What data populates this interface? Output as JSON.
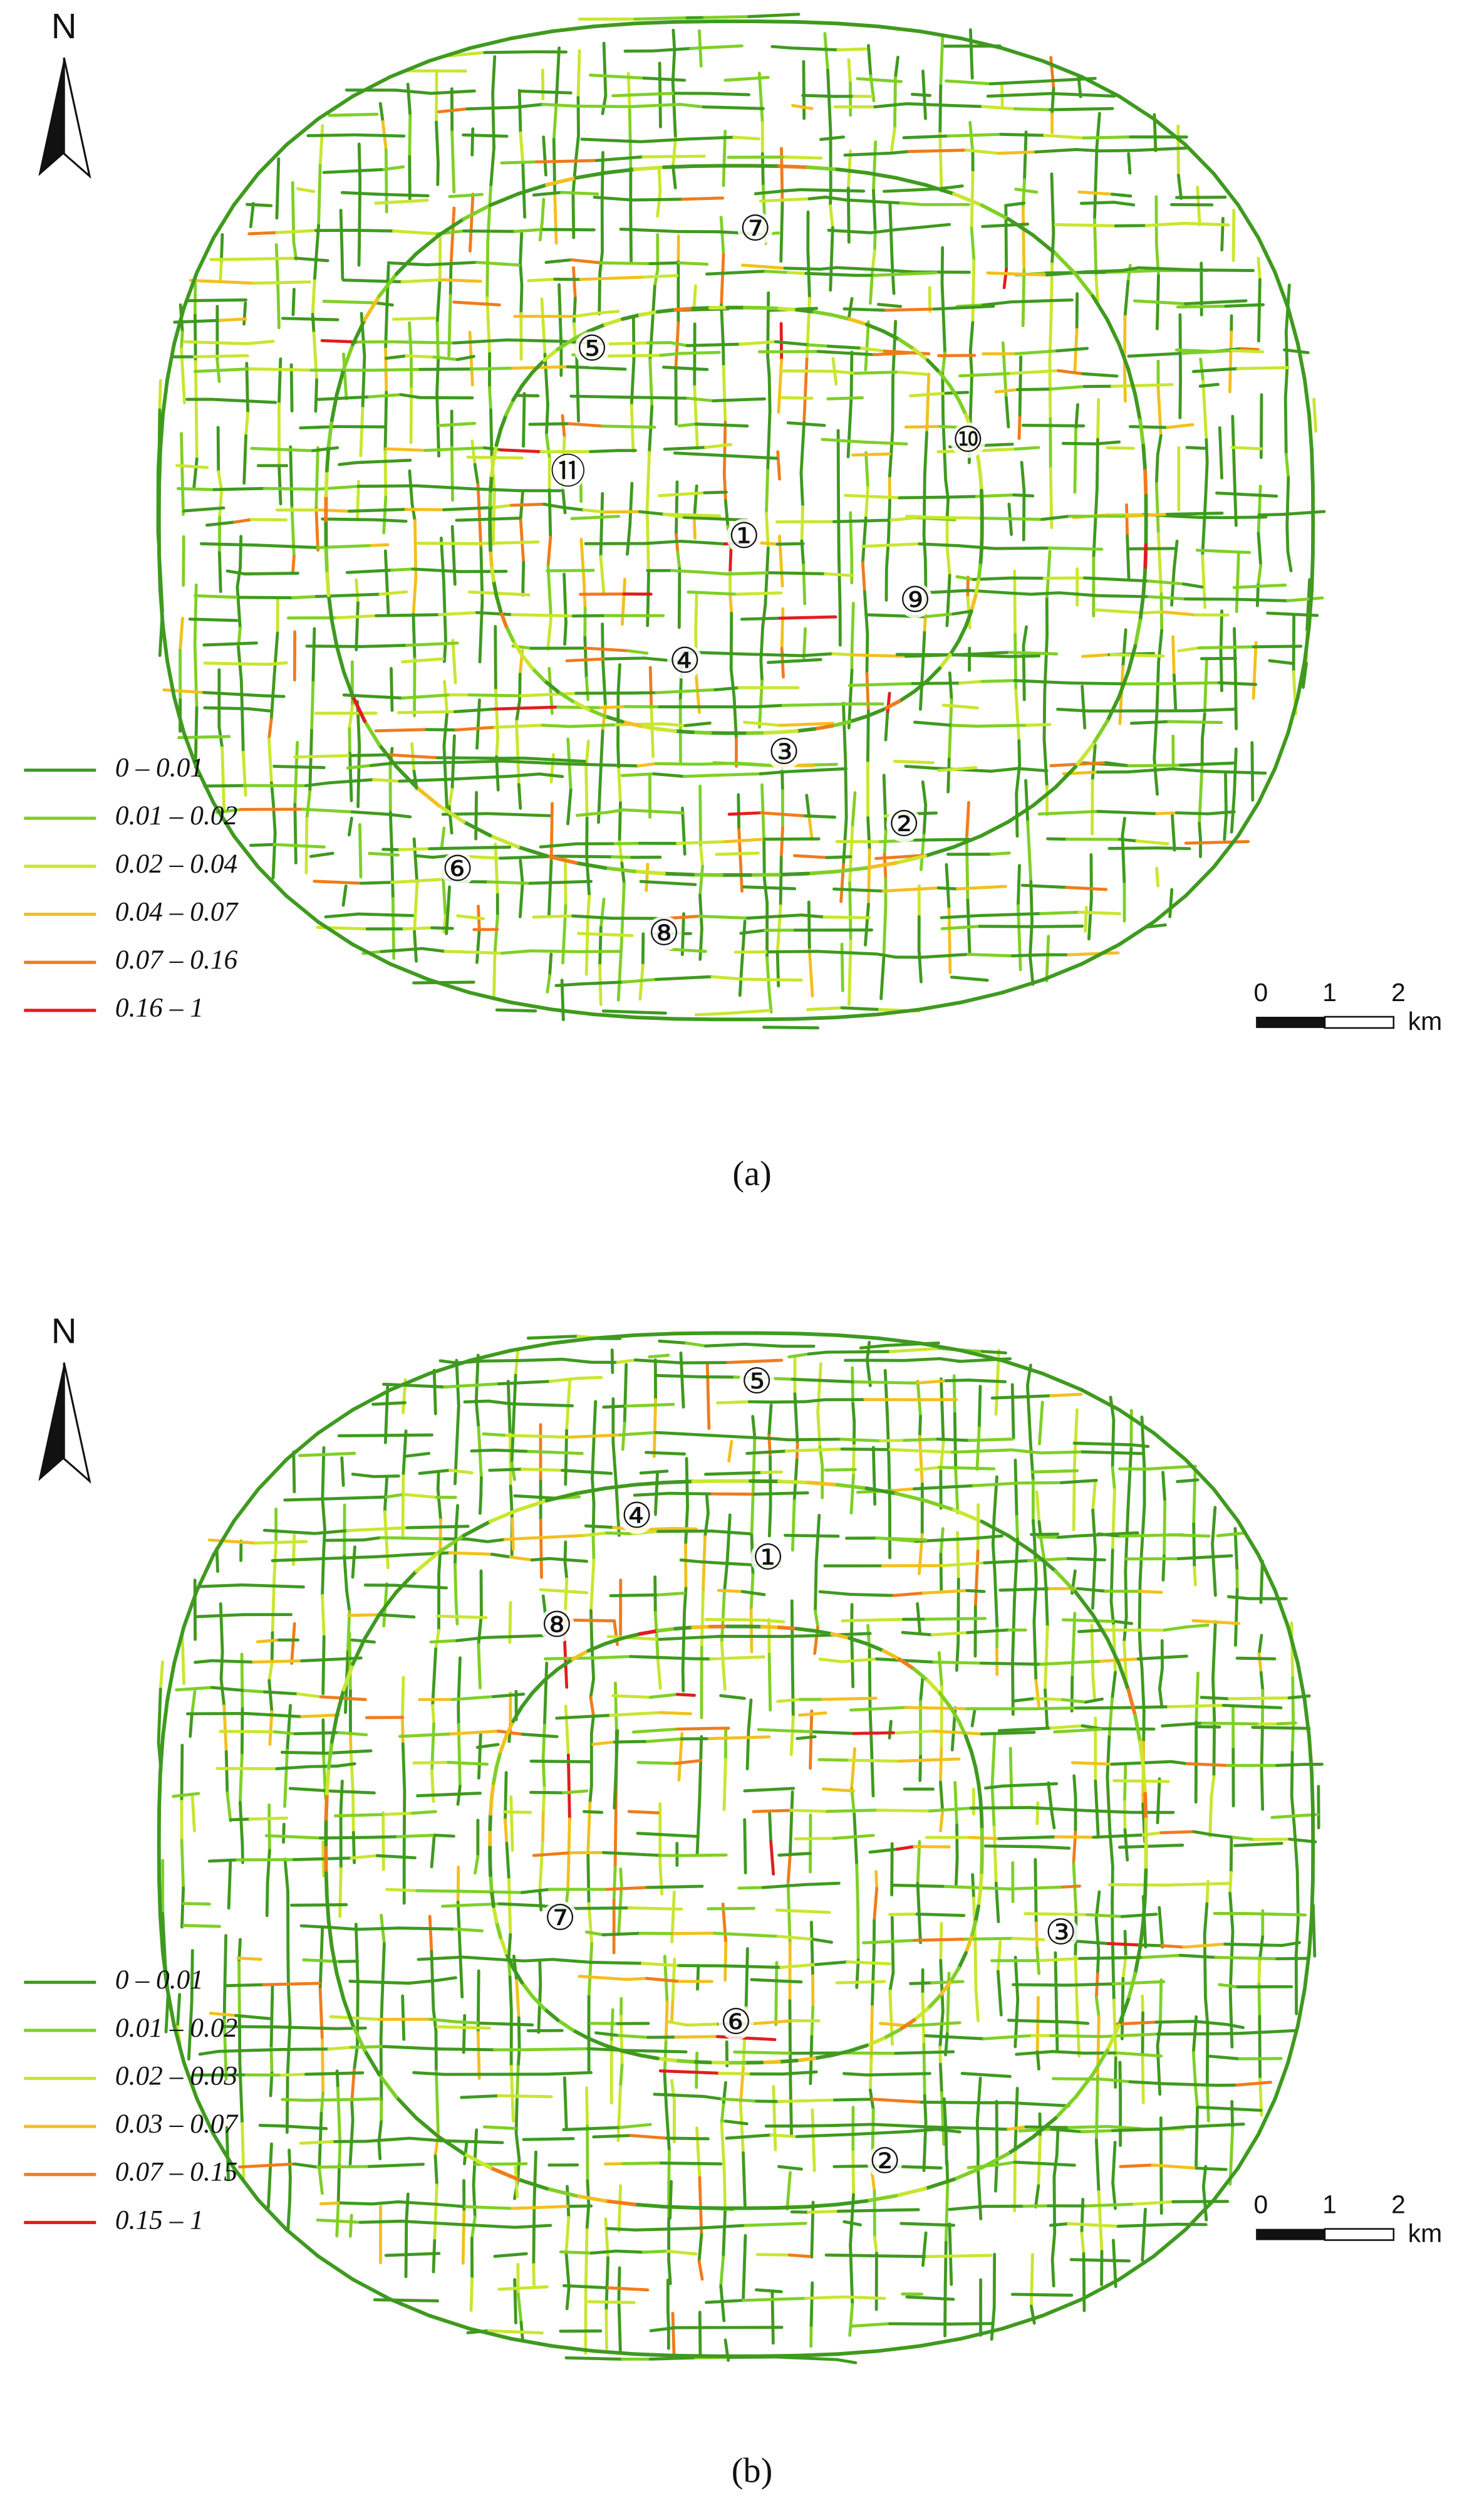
{
  "panels": [
    {
      "caption": "(a)",
      "north": "N",
      "legend": [
        {
          "label": "0 – 0.01",
          "color": "#3f9a1f"
        },
        {
          "label": "0.01 – 0.02",
          "color": "#7fd026"
        },
        {
          "label": "0.02 – 0.04",
          "color": "#c9e630"
        },
        {
          "label": "0.04 – 0.07",
          "color": "#f2c01e"
        },
        {
          "label": "0.07 – 0.16",
          "color": "#f07c1c"
        },
        {
          "label": "0.16 – 1",
          "color": "#e01e1e"
        }
      ],
      "scale_bar": {
        "ticks": [
          "0",
          "1",
          "2"
        ],
        "unit": "km"
      },
      "markers": [
        "①",
        "②",
        "③",
        "④",
        "⑤",
        "⑥",
        "⑦",
        "⑧",
        "⑨",
        "⑩",
        "⑪"
      ]
    },
    {
      "caption": "(b)",
      "north": "N",
      "legend": [
        {
          "label": "0 – 0.01",
          "color": "#3f9a1f"
        },
        {
          "label": "0.01 – 0.02",
          "color": "#7fd026"
        },
        {
          "label": "0.02 – 0.03",
          "color": "#c9e630"
        },
        {
          "label": "0.03 – 0.07",
          "color": "#f2c01e"
        },
        {
          "label": "0.07 – 0.15",
          "color": "#f07c1c"
        },
        {
          "label": "0.15 – 1",
          "color": "#e01e1e"
        }
      ],
      "scale_bar": {
        "ticks": [
          "0",
          "1",
          "2"
        ],
        "unit": "km"
      },
      "markers": [
        "①",
        "②",
        "③",
        "④",
        "⑤",
        "⑥",
        "⑦",
        "⑧"
      ]
    }
  ]
}
